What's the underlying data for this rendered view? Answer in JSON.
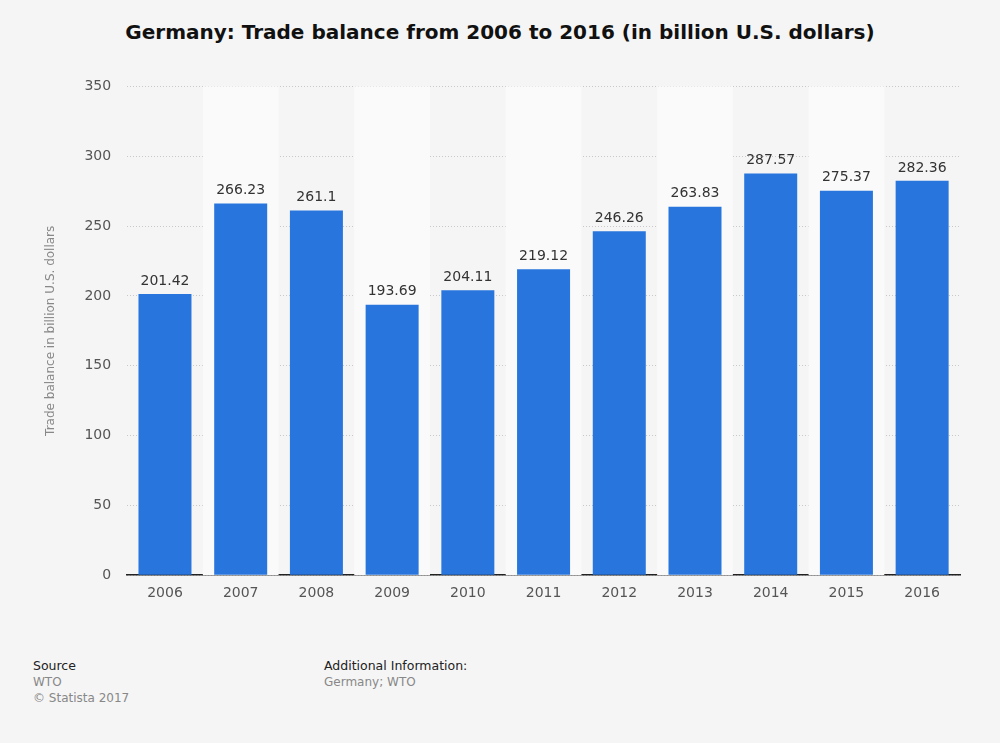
{
  "chart_data": {
    "type": "bar",
    "title": "Germany: Trade balance from 2006 to 2016 (in billion U.S. dollars)",
    "y_label": "Trade balance in billion U.S. dollars",
    "categories": [
      "2006",
      "2007",
      "2008",
      "2009",
      "2010",
      "2011",
      "2012",
      "2013",
      "2014",
      "2015",
      "2016"
    ],
    "values": [
      201.42,
      266.23,
      261.1,
      193.69,
      204.11,
      219.12,
      246.26,
      263.83,
      287.57,
      275.37,
      282.36
    ],
    "color": "#2876dd",
    "ylim": [
      0,
      350
    ],
    "yticks": [
      0,
      50,
      100,
      150,
      200,
      250,
      300,
      350
    ],
    "grid": true,
    "data_labels": true,
    "source_label": "Source",
    "source": "WTO",
    "copyright": "© Statista 2017",
    "additional_info_label": "Additional Information:",
    "additional_info": "Germany; WTO"
  }
}
